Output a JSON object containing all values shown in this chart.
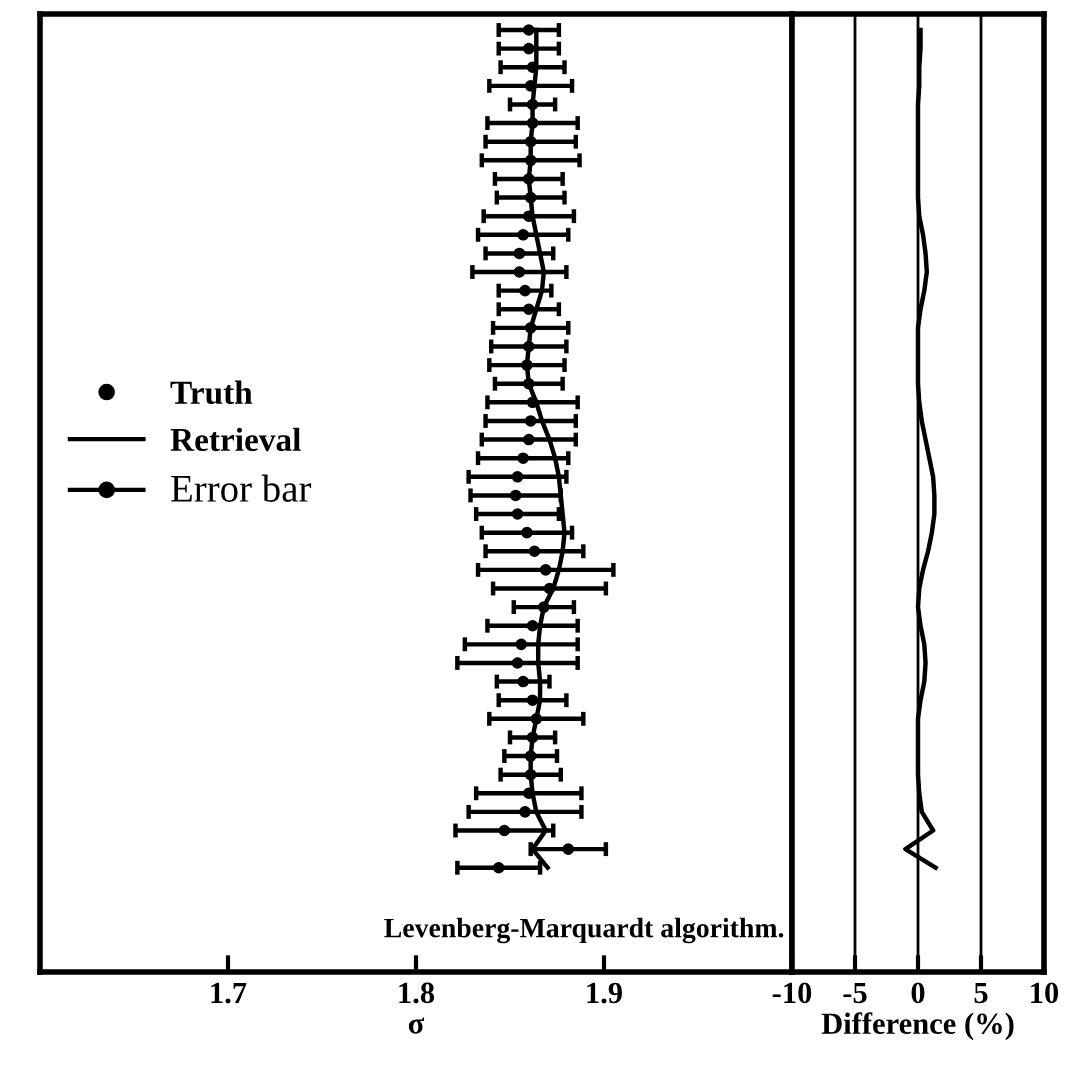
{
  "chart_data": [
    {
      "type": "scatter",
      "orientation": "horizontal",
      "xlabel": "σ",
      "xlim": [
        1.6,
        2.0
      ],
      "xticks": [
        1.7,
        1.8,
        1.9
      ],
      "tick_labels": "x",
      "legend": "left",
      "annotations": [
        "Levenberg-Marquardt algorithm.",
        "Error bar"
      ],
      "categories": [
        null,
        null,
        null,
        null,
        null,
        null,
        null,
        null,
        null,
        null,
        null,
        null,
        null,
        null,
        null,
        null,
        null,
        null,
        null,
        null,
        null,
        null,
        null,
        null,
        null,
        null,
        null,
        null,
        null,
        null,
        null,
        null,
        null,
        null,
        null,
        null,
        null,
        null,
        null,
        null,
        null,
        null,
        null,
        null,
        null,
        null
      ],
      "series": [
        {
          "name": "Truth",
          "type": "scatter",
          "marker": "circle",
          "color": "#000000",
          "values": [
            1.86,
            1.86,
            1.862,
            1.861,
            1.862,
            1.862,
            1.861,
            1.861,
            1.86,
            1.861,
            1.86,
            1.857,
            1.855,
            1.855,
            1.858,
            1.86,
            1.861,
            1.86,
            1.859,
            1.86,
            1.862,
            1.861,
            1.86,
            1.857,
            1.854,
            1.853,
            1.854,
            1.859,
            1.863,
            1.869,
            1.871,
            1.868,
            1.862,
            1.856,
            1.854,
            1.857,
            1.862,
            1.864,
            1.862,
            1.861,
            1.861,
            1.86,
            1.858,
            1.847,
            1.881,
            1.844
          ],
          "errors": [
            0.016,
            0.016,
            0.017,
            0.022,
            0.012,
            0.024,
            0.024,
            0.026,
            0.018,
            0.018,
            0.024,
            0.024,
            0.018,
            0.025,
            0.014,
            0.016,
            0.02,
            0.02,
            0.02,
            0.018,
            0.024,
            0.024,
            0.025,
            0.024,
            0.026,
            0.024,
            0.022,
            0.024,
            0.026,
            0.036,
            0.03,
            0.016,
            0.024,
            0.03,
            0.032,
            0.014,
            0.018,
            0.025,
            0.012,
            0.014,
            0.016,
            0.028,
            0.03,
            0.026,
            0.02,
            0.022
          ]
        },
        {
          "name": "Retrieval",
          "type": "line",
          "color": "#000000",
          "values": [
            1.864,
            1.864,
            1.864,
            1.863,
            1.862,
            1.862,
            1.861,
            1.861,
            1.86,
            1.861,
            1.862,
            1.864,
            1.866,
            1.868,
            1.867,
            1.864,
            1.861,
            1.86,
            1.859,
            1.86,
            1.864,
            1.867,
            1.871,
            1.874,
            1.876,
            1.877,
            1.878,
            1.879,
            1.878,
            1.876,
            1.873,
            1.868,
            1.866,
            1.865,
            1.865,
            1.866,
            1.866,
            1.864,
            1.862,
            1.861,
            1.861,
            1.862,
            1.864,
            1.869,
            1.862,
            1.87
          ]
        }
      ]
    },
    {
      "type": "line",
      "orientation": "horizontal",
      "xlabel": "Difference (%)",
      "xlim": [
        -10,
        10
      ],
      "xticks": [
        -10,
        -5,
        0,
        5,
        10
      ],
      "tick_labels": "x",
      "grid": "x",
      "categories": [
        null,
        null,
        null,
        null,
        null,
        null,
        null,
        null,
        null,
        null,
        null,
        null,
        null,
        null,
        null,
        null,
        null,
        null,
        null,
        null,
        null,
        null,
        null,
        null,
        null,
        null,
        null,
        null,
        null,
        null,
        null,
        null,
        null,
        null,
        null,
        null,
        null,
        null,
        null,
        null,
        null,
        null,
        null,
        null,
        null,
        null
      ],
      "series": [
        {
          "color": "#000000",
          "values": [
            0.2,
            0.2,
            0.1,
            0.1,
            0,
            0,
            0,
            0,
            0,
            0,
            0.1,
            0.4,
            0.6,
            0.7,
            0.5,
            0.2,
            0,
            0,
            0,
            0,
            0.1,
            0.3,
            0.6,
            0.9,
            1.2,
            1.3,
            1.3,
            1.1,
            0.8,
            0.4,
            0.1,
            0,
            0.2,
            0.5,
            0.6,
            0.5,
            0.2,
            0,
            0,
            0,
            0,
            0.1,
            0.3,
            1.2,
            -1.0,
            1.4
          ]
        }
      ]
    }
  ]
}
